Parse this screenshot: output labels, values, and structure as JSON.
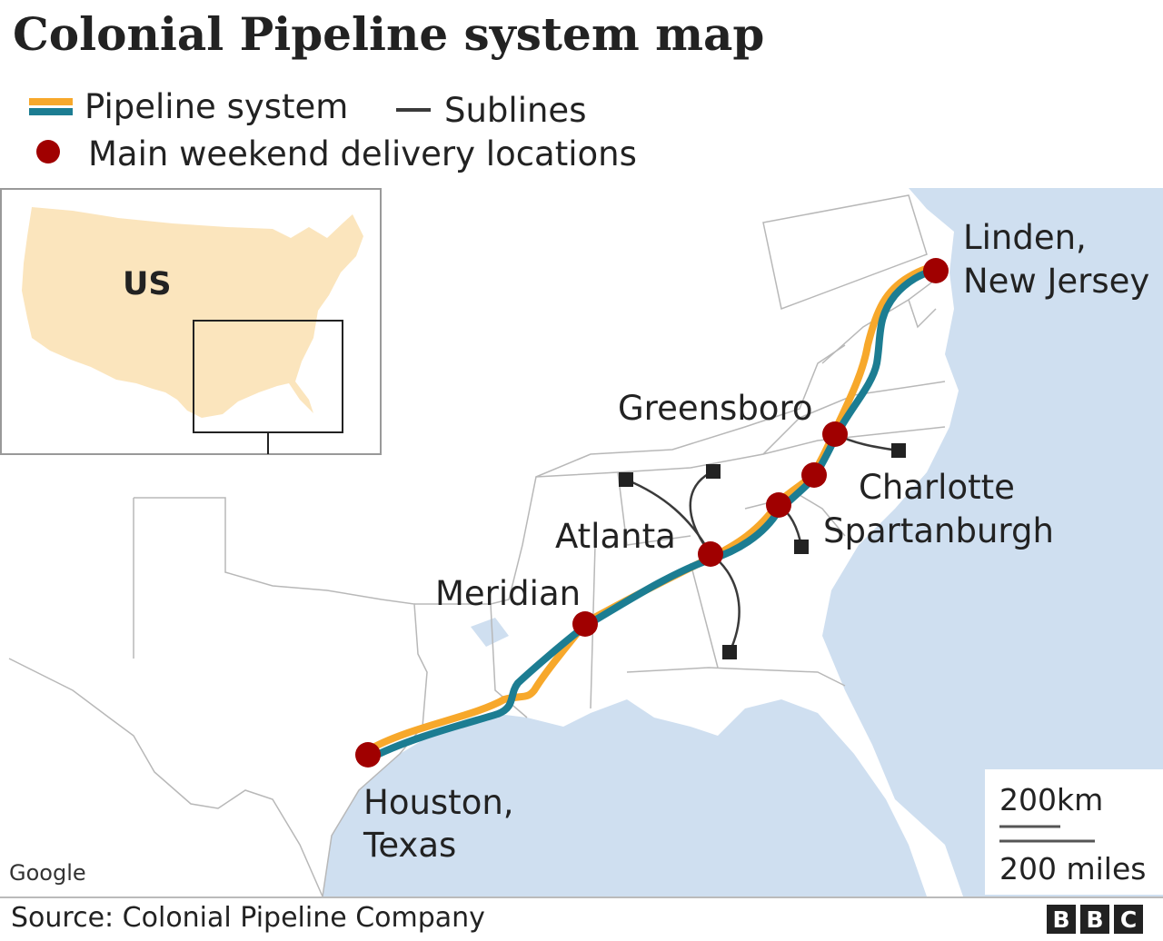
{
  "title": "Colonial Pipeline system map",
  "legend": {
    "pipeline": "Pipeline system",
    "sublines": "Sublines",
    "delivery": "Main weekend delivery locations"
  },
  "colors": {
    "pipeline_orange": "#f7a82b",
    "pipeline_teal": "#1c7d92",
    "delivery_dot": "#a00000",
    "subline": "#3a3a3a",
    "water": "#cfdff0",
    "inset_land": "#fbe5bd"
  },
  "inset": {
    "label": "US"
  },
  "locations": {
    "linden_line1": "Linden,",
    "linden_line2": "New Jersey",
    "greensboro": "Greensboro",
    "charlotte": "Charlotte",
    "spartanburgh": "Spartanburgh",
    "atlanta": "Atlanta",
    "meridian": "Meridian",
    "houston_line1": "Houston,",
    "houston_line2": "Texas"
  },
  "scale": {
    "km": "200km",
    "miles": "200 miles"
  },
  "map_credit": "Google",
  "source": "Source: Colonial Pipeline Company",
  "brand": [
    "B",
    "B",
    "C"
  ]
}
